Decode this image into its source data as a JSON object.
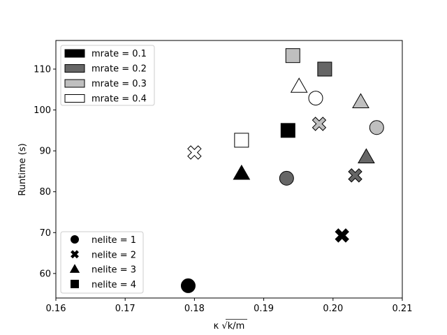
{
  "chart_data": {
    "type": "scatter",
    "title": "",
    "xlabel": "κ √k/m",
    "ylabel": "Runtime (s)",
    "xlim": [
      0.16,
      0.21
    ],
    "ylim": [
      54,
      117
    ],
    "xticks": [
      0.16,
      0.17,
      0.18,
      0.19,
      0.2,
      0.21
    ],
    "xtick_labels": [
      "0.16",
      "0.17",
      "0.18",
      "0.19",
      "0.20",
      "0.21"
    ],
    "yticks": [
      60,
      70,
      80,
      90,
      100,
      110
    ],
    "ytick_labels": [
      "60",
      "70",
      "80",
      "90",
      "100",
      "110"
    ],
    "grid": false,
    "color_legend": {
      "placement": "top-left",
      "title": "",
      "entries": [
        {
          "label": "mrate = 0.1",
          "color": "#000000"
        },
        {
          "label": "mrate = 0.2",
          "color": "#666666"
        },
        {
          "label": "mrate = 0.3",
          "color": "#bfbfbf"
        },
        {
          "label": "mrate = 0.4",
          "color": "#ffffff"
        }
      ]
    },
    "marker_legend": {
      "placement": "bottom-left",
      "entries": [
        {
          "label": "nelite = 1",
          "marker": "circle"
        },
        {
          "label": "nelite = 2",
          "marker": "x"
        },
        {
          "label": "nelite = 3",
          "marker": "triangle"
        },
        {
          "label": "nelite = 4",
          "marker": "square"
        }
      ]
    },
    "points": [
      {
        "x": 0.1791,
        "y": 57.0,
        "mrate": 0.1,
        "nelite": 1
      },
      {
        "x": 0.2013,
        "y": 69.3,
        "mrate": 0.1,
        "nelite": 2
      },
      {
        "x": 0.1868,
        "y": 84.5,
        "mrate": 0.1,
        "nelite": 3
      },
      {
        "x": 0.1935,
        "y": 95.0,
        "mrate": 0.1,
        "nelite": 4
      },
      {
        "x": 0.1933,
        "y": 83.3,
        "mrate": 0.2,
        "nelite": 1
      },
      {
        "x": 0.2032,
        "y": 84.0,
        "mrate": 0.2,
        "nelite": 2
      },
      {
        "x": 0.2048,
        "y": 88.5,
        "mrate": 0.2,
        "nelite": 3
      },
      {
        "x": 0.1988,
        "y": 110.0,
        "mrate": 0.2,
        "nelite": 4
      },
      {
        "x": 0.2063,
        "y": 95.7,
        "mrate": 0.3,
        "nelite": 1
      },
      {
        "x": 0.198,
        "y": 96.6,
        "mrate": 0.3,
        "nelite": 2
      },
      {
        "x": 0.204,
        "y": 102.0,
        "mrate": 0.3,
        "nelite": 3
      },
      {
        "x": 0.1942,
        "y": 113.3,
        "mrate": 0.3,
        "nelite": 4
      },
      {
        "x": 0.1975,
        "y": 102.9,
        "mrate": 0.4,
        "nelite": 1
      },
      {
        "x": 0.18,
        "y": 89.6,
        "mrate": 0.4,
        "nelite": 2
      },
      {
        "x": 0.1951,
        "y": 105.8,
        "mrate": 0.4,
        "nelite": 3
      },
      {
        "x": 0.1868,
        "y": 92.6,
        "mrate": 0.4,
        "nelite": 4
      }
    ]
  }
}
